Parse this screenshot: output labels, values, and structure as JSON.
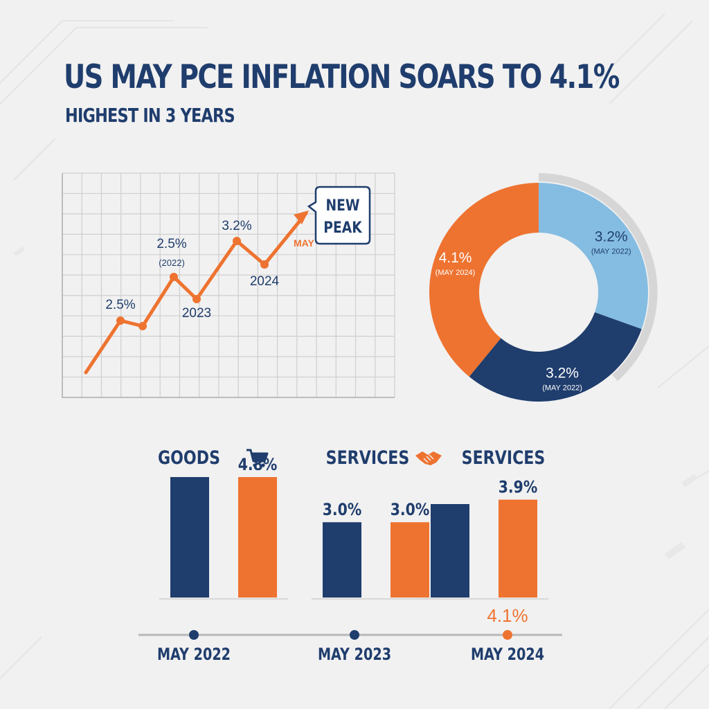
{
  "header": {
    "title": "US MAY PCE INFLATION SOARS TO 4.1%",
    "subtitle": "HIGHEST IN 3 YEARS"
  },
  "colors": {
    "navy": "#1f3d6d",
    "orange": "#ee7330",
    "light_blue": "#85bde2",
    "grid": "#cfcfcf",
    "background": "#f1f1f1"
  },
  "icons": {
    "goods": "shopping-cart-icon",
    "services": "handshake-icon"
  },
  "chart_data": [
    {
      "type": "line",
      "grid": true,
      "series": [
        {
          "color": "#ee7330",
          "points": [
            {
              "label": ""
            },
            {
              "label": "2.5%"
            },
            {
              "label": ""
            },
            {
              "label": "2.5%",
              "sublabel": "(2022)"
            },
            {
              "label": "2023"
            },
            {
              "label": "3.2%"
            },
            {
              "label": "2024"
            }
          ]
        }
      ],
      "arrow_label": "MAY",
      "callout": [
        "NEW",
        "PEAK"
      ]
    },
    {
      "type": "pie",
      "donut": true,
      "slices": [
        {
          "value": 3.2,
          "label": "3.2%",
          "sublabel": "(MAY 2022)",
          "color": "#85bde2"
        },
        {
          "value": 3.2,
          "label": "3.2%",
          "sublabel": "(MAY 2022)",
          "color": "#1f3d6d"
        },
        {
          "value": 4.1,
          "label": "4.1%",
          "sublabel": "(MAY 2024)",
          "color": "#ee7330"
        }
      ]
    },
    {
      "type": "bar",
      "groups": [
        {
          "title": "GOODS",
          "icon": "shopping-cart-icon"
        },
        {
          "title": "SERVICES",
          "icon": "handshake-icon"
        },
        {
          "title": "SERVICES"
        }
      ],
      "series": [
        {
          "color": "#1f3d6d",
          "values": [
            null,
            3.0,
            null
          ],
          "labels": [
            "",
            "3.0%",
            ""
          ]
        },
        {
          "color": "#ee7330",
          "values": [
            4.8,
            3.0,
            3.9
          ],
          "labels": [
            "4.8%",
            "3.0%",
            "3.9%"
          ]
        }
      ],
      "timeline": {
        "points": [
          {
            "label": "MAY 2022",
            "color": "#1f3d6d"
          },
          {
            "label": "MAY 2023",
            "color": "#1f3d6d"
          },
          {
            "label": "MAY 2024",
            "color": "#ee7330",
            "value_label": "4.1%"
          }
        ]
      }
    }
  ]
}
